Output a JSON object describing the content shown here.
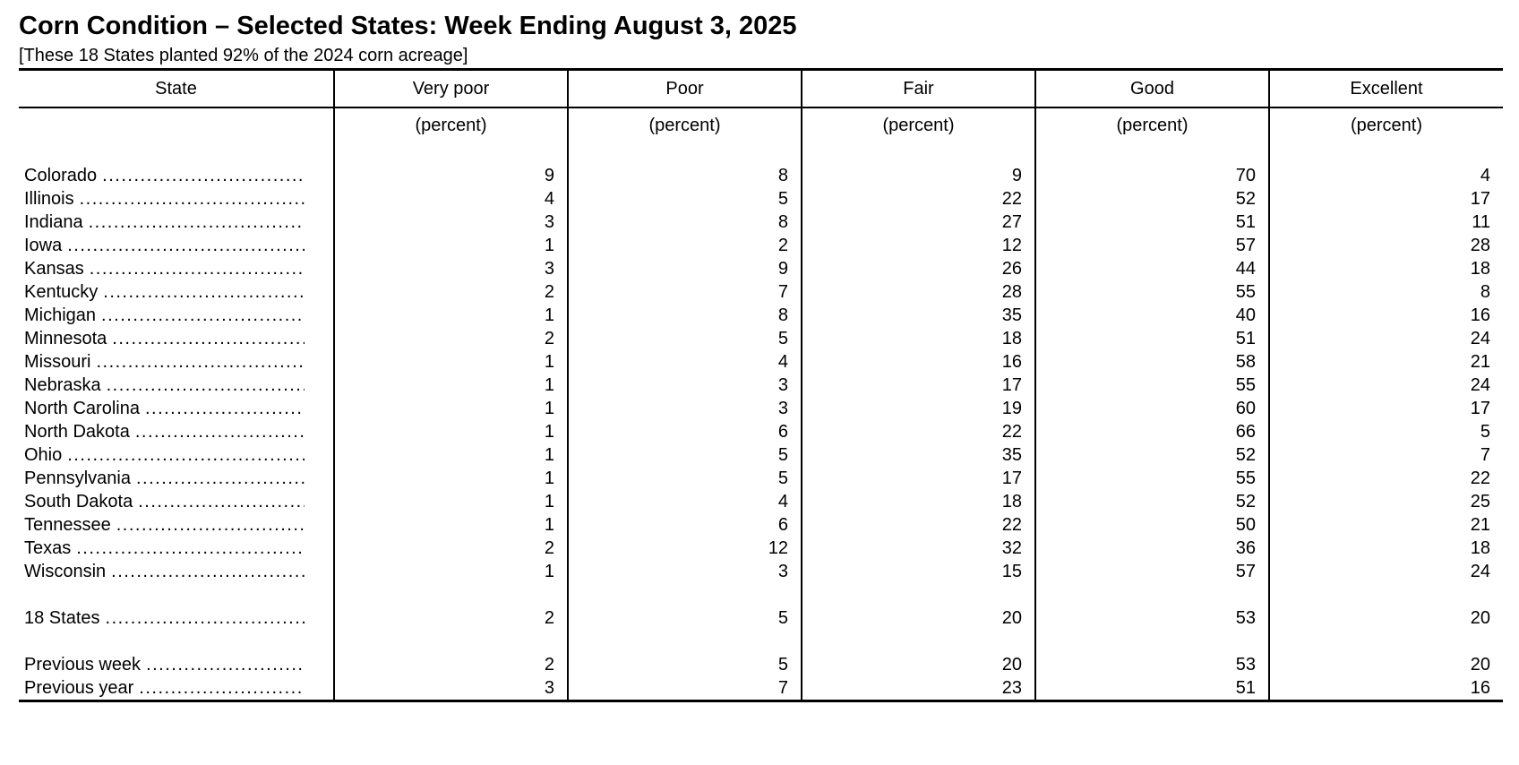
{
  "page": {
    "title": "Corn Condition – Selected States: Week Ending August 3, 2025",
    "subtitle": "[These 18 States planted 92% of the 2024 corn acreage]"
  },
  "table": {
    "columns": [
      "State",
      "Very poor",
      "Poor",
      "Fair",
      "Good",
      "Excellent"
    ],
    "unit_label": "(percent)",
    "state_rows": [
      [
        "Colorado",
        9,
        8,
        9,
        70,
        4
      ],
      [
        "Illinois",
        4,
        5,
        22,
        52,
        17
      ],
      [
        "Indiana",
        3,
        8,
        27,
        51,
        11
      ],
      [
        "Iowa",
        1,
        2,
        12,
        57,
        28
      ],
      [
        "Kansas",
        3,
        9,
        26,
        44,
        18
      ],
      [
        "Kentucky",
        2,
        7,
        28,
        55,
        8
      ],
      [
        "Michigan",
        1,
        8,
        35,
        40,
        16
      ],
      [
        "Minnesota",
        2,
        5,
        18,
        51,
        24
      ],
      [
        "Missouri",
        1,
        4,
        16,
        58,
        21
      ],
      [
        "Nebraska",
        1,
        3,
        17,
        55,
        24
      ],
      [
        "North Carolina",
        1,
        3,
        19,
        60,
        17
      ],
      [
        "North Dakota",
        1,
        6,
        22,
        66,
        5
      ],
      [
        "Ohio",
        1,
        5,
        35,
        52,
        7
      ],
      [
        "Pennsylvania",
        1,
        5,
        17,
        55,
        22
      ],
      [
        "South Dakota",
        1,
        4,
        18,
        52,
        25
      ],
      [
        "Tennessee",
        1,
        6,
        22,
        50,
        21
      ],
      [
        "Texas",
        2,
        12,
        32,
        36,
        18
      ],
      [
        "Wisconsin",
        1,
        3,
        15,
        57,
        24
      ]
    ],
    "total_rows": [
      [
        "18 States",
        2,
        5,
        20,
        53,
        20
      ]
    ],
    "comparison_rows": [
      [
        "Previous week",
        2,
        5,
        20,
        53,
        20
      ],
      [
        "Previous year",
        3,
        7,
        23,
        51,
        16
      ]
    ]
  },
  "colors": {
    "text": "#000000",
    "background": "#ffffff",
    "rule": "#000000"
  }
}
